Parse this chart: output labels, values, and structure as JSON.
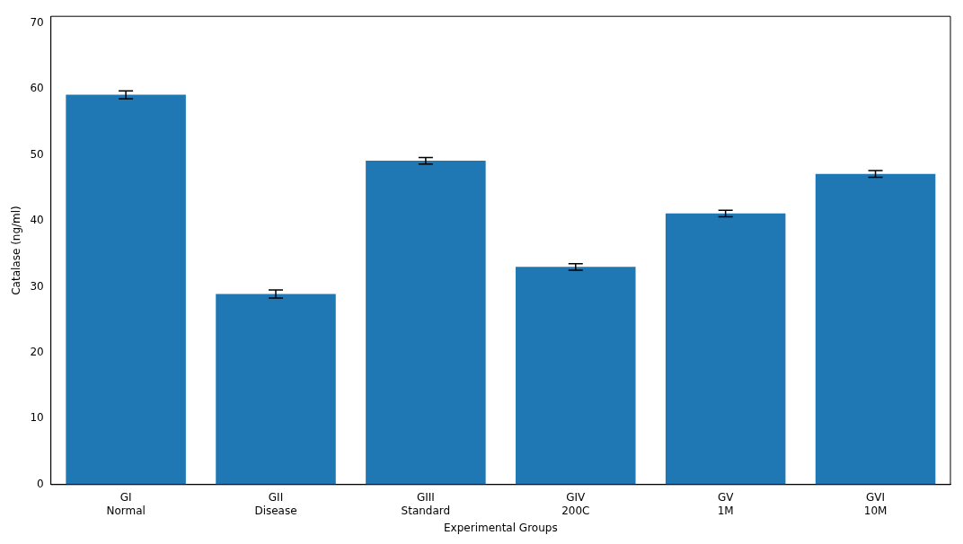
{
  "chart_data": {
    "type": "bar",
    "xlabel": "Experimental Groups",
    "ylabel": "Catalase (ng/ml)",
    "categories": [
      "GI\nNormal",
      "GII\nDisease",
      "GIII\nStandard",
      "GIV\n200C",
      "GV\n1M",
      "GVI\n10M"
    ],
    "values": [
      59.1,
      28.9,
      49.1,
      33.0,
      41.1,
      47.1
    ],
    "errors": [
      0.6,
      0.6,
      0.5,
      0.5,
      0.5,
      0.5
    ],
    "color": "#1f77b4",
    "ylim": [
      0,
      71
    ],
    "yticks": [
      0,
      10,
      20,
      30,
      40,
      50,
      60,
      70
    ],
    "grid": false,
    "legend": false
  }
}
